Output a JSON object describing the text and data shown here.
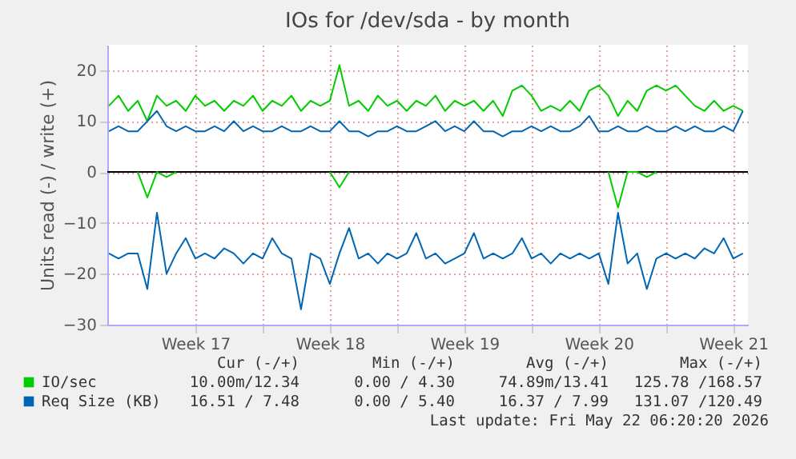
{
  "chart_data": {
    "type": "line",
    "title": "IOs for /dev/sda - by month",
    "ylabel": "Units read (-) / write (+)",
    "x": [
      "2026-04-19T00:00",
      "2026-04-19T12:00",
      "2026-04-20T00:00",
      "2026-04-20T12:00",
      "2026-04-21T00:00",
      "2026-04-21T12:00",
      "2026-04-22T00:00",
      "2026-04-22T12:00",
      "2026-04-23T00:00",
      "2026-04-23T12:00",
      "2026-04-24T00:00",
      "2026-04-24T12:00",
      "2026-04-25T00:00",
      "2026-04-25T12:00",
      "2026-04-26T00:00",
      "2026-04-26T12:00",
      "2026-04-27T00:00",
      "2026-04-27T12:00",
      "2026-04-28T00:00",
      "2026-04-28T12:00",
      "2026-04-29T00:00",
      "2026-04-29T12:00",
      "2026-04-30T00:00",
      "2026-04-30T12:00",
      "2026-05-01T00:00",
      "2026-05-01T12:00",
      "2026-05-02T00:00",
      "2026-05-02T12:00",
      "2026-05-03T00:00",
      "2026-05-03T12:00",
      "2026-05-04T00:00",
      "2026-05-04T12:00",
      "2026-05-05T00:00",
      "2026-05-05T12:00",
      "2026-05-06T00:00",
      "2026-05-06T12:00",
      "2026-05-07T00:00",
      "2026-05-07T12:00",
      "2026-05-08T00:00",
      "2026-05-08T12:00",
      "2026-05-09T00:00",
      "2026-05-09T12:00",
      "2026-05-10T00:00",
      "2026-05-10T12:00",
      "2026-05-11T00:00",
      "2026-05-11T12:00",
      "2026-05-12T00:00",
      "2026-05-12T12:00",
      "2026-05-13T00:00",
      "2026-05-13T12:00",
      "2026-05-14T00:00",
      "2026-05-14T12:00",
      "2026-05-15T00:00",
      "2026-05-15T12:00",
      "2026-05-16T00:00",
      "2026-05-16T12:00",
      "2026-05-17T00:00",
      "2026-05-17T12:00",
      "2026-05-18T00:00",
      "2026-05-18T12:00",
      "2026-05-19T00:00",
      "2026-05-19T12:00",
      "2026-05-20T00:00",
      "2026-05-20T12:00",
      "2026-05-21T00:00",
      "2026-05-21T12:00",
      "2026-05-22T00:00"
    ],
    "series": [
      {
        "name": "IO/sec",
        "color": "#00cc00",
        "values": [
          13,
          15,
          12,
          14,
          10,
          15,
          13,
          14,
          12,
          15,
          13,
          14,
          12,
          14,
          13,
          15,
          12,
          14,
          13,
          15,
          12,
          14,
          13,
          14,
          21,
          13,
          14,
          12,
          15,
          13,
          14,
          12,
          14,
          13,
          15,
          12,
          14,
          13,
          14,
          12,
          14,
          11,
          16,
          17,
          15,
          12,
          13,
          12,
          14,
          12,
          16,
          17,
          15,
          11,
          14,
          12,
          16,
          17,
          16,
          17,
          15,
          13,
          12,
          14,
          12,
          13,
          12
        ]
      },
      {
        "color": "#00cc00",
        "values": [
          null,
          null,
          null,
          0,
          -5,
          0,
          -1,
          0,
          null,
          null,
          null,
          null,
          null,
          null,
          null,
          null,
          null,
          null,
          null,
          null,
          null,
          null,
          null,
          0,
          -3,
          0,
          null,
          null,
          null,
          null,
          null,
          null,
          null,
          null,
          null,
          null,
          null,
          null,
          null,
          null,
          null,
          null,
          null,
          null,
          null,
          null,
          null,
          null,
          null,
          null,
          null,
          null,
          0,
          -7,
          0,
          0,
          -1,
          0,
          null,
          null,
          null,
          null,
          null,
          null,
          null,
          null,
          null
        ]
      },
      {
        "name": "Req Size (KB)",
        "color": "#0066b3",
        "values": [
          8,
          9,
          8,
          8,
          10,
          12,
          9,
          8,
          9,
          8,
          8,
          9,
          8,
          10,
          8,
          9,
          8,
          8,
          9,
          8,
          8,
          9,
          8,
          8,
          10,
          8,
          8,
          7,
          8,
          8,
          9,
          8,
          8,
          9,
          10,
          8,
          9,
          8,
          10,
          8,
          8,
          7,
          8,
          8,
          9,
          8,
          9,
          8,
          8,
          9,
          11,
          8,
          8,
          9,
          8,
          8,
          9,
          8,
          8,
          9,
          8,
          9,
          8,
          8,
          9,
          8,
          12
        ]
      },
      {
        "color": "#0066b3",
        "values": [
          -16,
          -17,
          -16,
          -16,
          -23,
          -8,
          -20,
          -16,
          -13,
          -17,
          -16,
          -17,
          -15,
          -16,
          -18,
          -16,
          -17,
          -13,
          -16,
          -17,
          -27,
          -16,
          -17,
          -22,
          -16,
          -11,
          -17,
          -16,
          -18,
          -16,
          -17,
          -16,
          -12,
          -17,
          -16,
          -18,
          -17,
          -16,
          -12,
          -17,
          -16,
          -17,
          -16,
          -13,
          -17,
          -16,
          -18,
          -16,
          -17,
          -16,
          -17,
          -16,
          -22,
          -8,
          -18,
          -16,
          -23,
          -17,
          -16,
          -17,
          -16,
          -17,
          -15,
          -16,
          -13,
          -17,
          -16
        ]
      }
    ],
    "xlim": [
      "2026-04-18T22:00",
      "2026-05-22T06:20"
    ],
    "xticks": [
      {
        "value": "2026-04-23T12:00",
        "label": "Week 17"
      },
      {
        "value": "2026-04-27",
        "label": null
      },
      {
        "value": "2026-04-30T12:00",
        "label": "Week 18"
      },
      {
        "value": "2026-05-04",
        "label": null
      },
      {
        "value": "2026-05-07T12:00",
        "label": "Week 19"
      },
      {
        "value": "2026-05-11",
        "label": null
      },
      {
        "value": "2026-05-14T12:00",
        "label": "Week 20"
      },
      {
        "value": "2026-05-18",
        "label": null
      },
      {
        "value": "2026-05-21T12:00",
        "label": "Week 21"
      }
    ],
    "ylim": [
      -30,
      25
    ],
    "yticks": [
      -30,
      -20,
      -10,
      0,
      10,
      20
    ],
    "grid": true,
    "legend": "bottom",
    "ref_lines": [
      {
        "axis": "y",
        "value": 0,
        "color": "#000000"
      }
    ],
    "annotations": [
      "Cur (-/+)",
      "Min (-/+)",
      "Avg (-/+)",
      "Max (-/+)",
      "10.00m/12.34",
      "0.00 / 4.30",
      "74.89m/13.41",
      "125.78 /168.57",
      "16.51 / 7.48",
      "0.00 / 5.40",
      "16.37 / 7.99",
      "131.07 /120.49",
      "Last update: Fri May 22 06:20:20 2026"
    ]
  }
}
